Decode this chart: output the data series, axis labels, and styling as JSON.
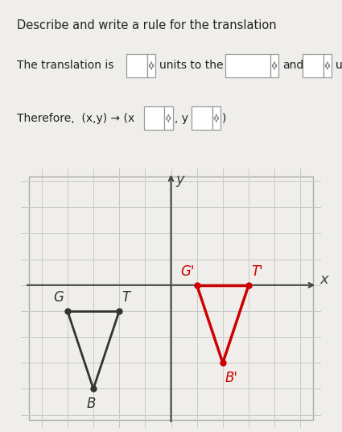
{
  "title_text": "Describe and write a rule for the translation",
  "bg_color": "#f0eeeb",
  "grid_color": "#c8c8c8",
  "axis_color": "#444444",
  "original_triangle": {
    "G": [
      -4,
      -1
    ],
    "T": [
      -2,
      -1
    ],
    "B": [
      -3,
      -4
    ]
  },
  "translated_triangle": {
    "G_prime": [
      1,
      0
    ],
    "T_prime": [
      3,
      0
    ],
    "B_prime": [
      2,
      -3
    ]
  },
  "original_color": "#333333",
  "translated_color": "#cc0000",
  "xlim": [
    -5.8,
    5.8
  ],
  "ylim": [
    -5.5,
    4.5
  ],
  "x_grid_min": -5,
  "x_grid_max": 5,
  "y_grid_min": -5,
  "y_grid_max": 4,
  "box_color": "#ffffff",
  "box_edge_color": "#999999",
  "text_color": "#222222",
  "header_fontsize": 10.5,
  "label_fontsize": 10,
  "point_label_fontsize": 12
}
